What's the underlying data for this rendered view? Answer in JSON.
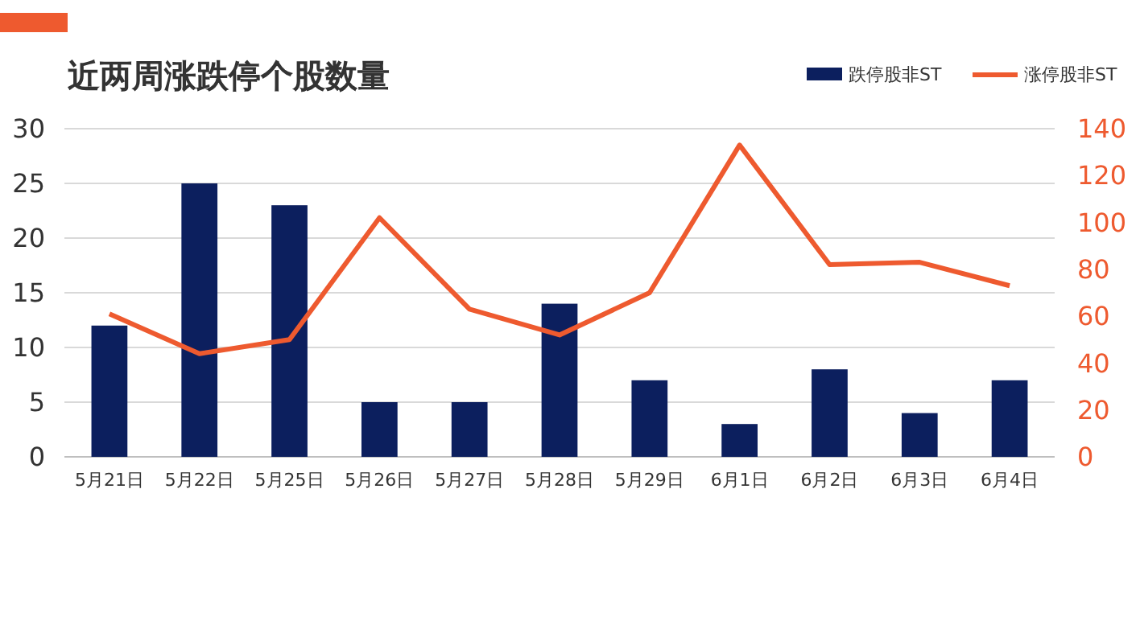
{
  "chart_data": {
    "type": "bar",
    "title": "近两周涨跌停个股数量",
    "categories": [
      "5月21日",
      "5月22日",
      "5月25日",
      "5月26日",
      "5月27日",
      "5月28日",
      "5月29日",
      "6月1日",
      "6月2日",
      "6月3日",
      "6月4日"
    ],
    "series": [
      {
        "name": "跌停股非ST",
        "color": "#0c1f5e",
        "values": [
          12,
          25,
          23,
          5,
          5,
          14,
          7,
          3,
          8,
          4,
          7
        ]
      },
      {
        "name": "涨停股非ST",
        "type": "line",
        "axis": "y2",
        "color": "#ee5a2f",
        "values": [
          61,
          44,
          50,
          102,
          63,
          52,
          70,
          133,
          82,
          83,
          73
        ]
      }
    ],
    "ylim": [
      0,
      30
    ],
    "yticks": [
      0,
      5,
      10,
      15,
      20,
      25,
      30
    ],
    "y2lim": [
      0,
      140
    ],
    "y2ticks": [
      0,
      20,
      40,
      60,
      80,
      100,
      120,
      140
    ],
    "grid": "y",
    "legend": "top right",
    "marker": "none"
  }
}
